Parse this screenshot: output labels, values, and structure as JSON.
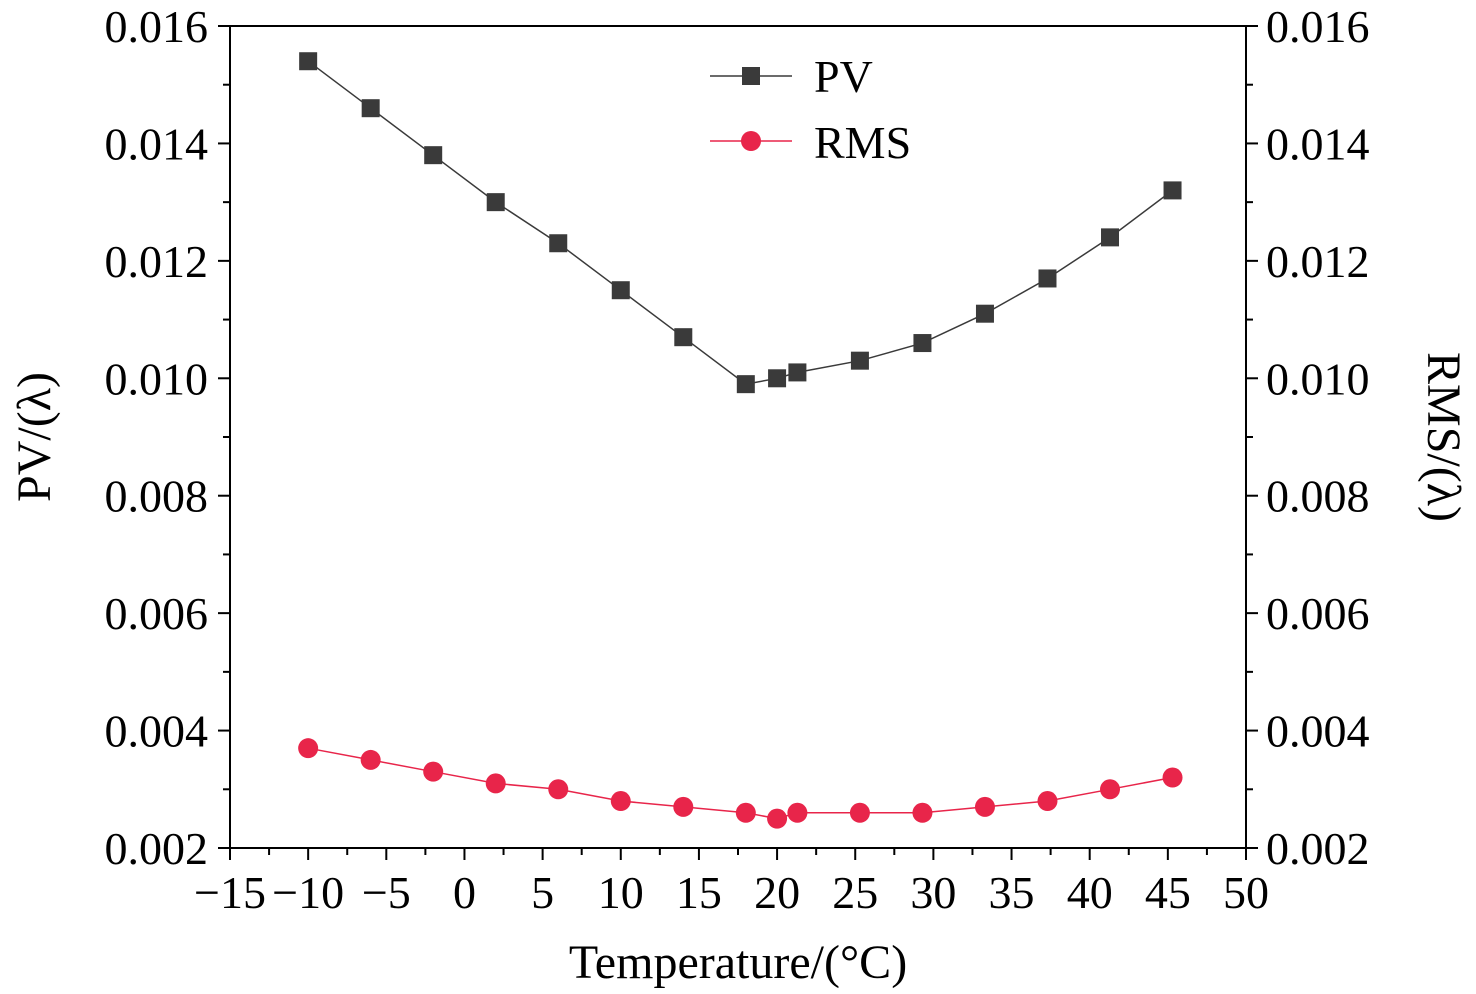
{
  "chart_data": {
    "type": "scatter",
    "xlabel": "Temperature/(°C)",
    "ylabel_left": "PV/(λ)",
    "ylabel_right": "RMS/(λ)",
    "xlim": [
      -15,
      50
    ],
    "ylim": [
      0.002,
      0.016
    ],
    "x_ticks": [
      "−15",
      "−10",
      "−5",
      "0",
      "5",
      "10",
      "15",
      "20",
      "25",
      "30",
      "35",
      "40",
      "45",
      "50"
    ],
    "y_ticks": [
      "0.002",
      "0.004",
      "0.006",
      "0.008",
      "0.010",
      "0.012",
      "0.014",
      "0.016"
    ],
    "legend_position": "top-center",
    "grid": false,
    "series": [
      {
        "name": "PV",
        "marker": "square",
        "color": "#3a3a3a",
        "x": [
          -10,
          -6,
          -2,
          2,
          6,
          10,
          14,
          18,
          20,
          21.3,
          25.3,
          29.3,
          33.3,
          37.3,
          41.3,
          45.3
        ],
        "values": [
          0.0154,
          0.0146,
          0.0138,
          0.013,
          0.0123,
          0.0115,
          0.0107,
          0.0099,
          0.01,
          0.0101,
          0.0103,
          0.0106,
          0.0111,
          0.0117,
          0.0124,
          0.0132
        ]
      },
      {
        "name": "RMS",
        "marker": "circle",
        "color": "#e8254a",
        "x": [
          -10,
          -6,
          -2,
          2,
          6,
          10,
          14,
          18,
          20,
          21.3,
          25.3,
          29.3,
          33.3,
          37.3,
          41.3,
          45.3
        ],
        "values": [
          0.0037,
          0.0035,
          0.0033,
          0.0031,
          0.003,
          0.0028,
          0.0027,
          0.0026,
          0.0025,
          0.0026,
          0.0026,
          0.0026,
          0.0027,
          0.0028,
          0.003,
          0.0032
        ]
      }
    ]
  }
}
